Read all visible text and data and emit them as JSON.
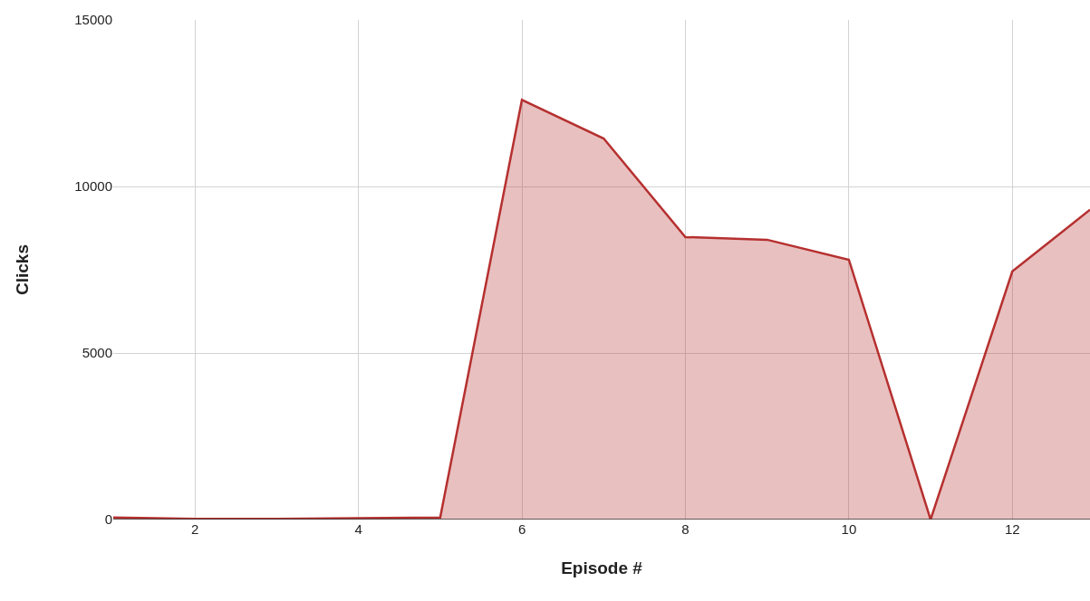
{
  "chart_data": {
    "type": "area",
    "xlabel": "Episode #",
    "ylabel": "Clicks",
    "x": [
      1,
      2,
      3,
      4,
      5,
      6,
      7,
      8,
      9,
      10,
      11,
      12,
      12.95
    ],
    "series": [
      {
        "color": "#b5302f",
        "values": [
          60,
          20,
          20,
          40,
          60,
          12600,
          11440,
          8480,
          8400,
          7800,
          0,
          7450,
          9300
        ]
      }
    ],
    "xlim": [
      1,
      12.95
    ],
    "xticks": [
      2,
      4,
      6,
      8,
      10,
      12
    ],
    "ylim": [
      0,
      15000
    ],
    "yticks": [
      0,
      5000,
      10000,
      15000
    ],
    "grid": true,
    "marker": "none",
    "line_style": "solid"
  }
}
